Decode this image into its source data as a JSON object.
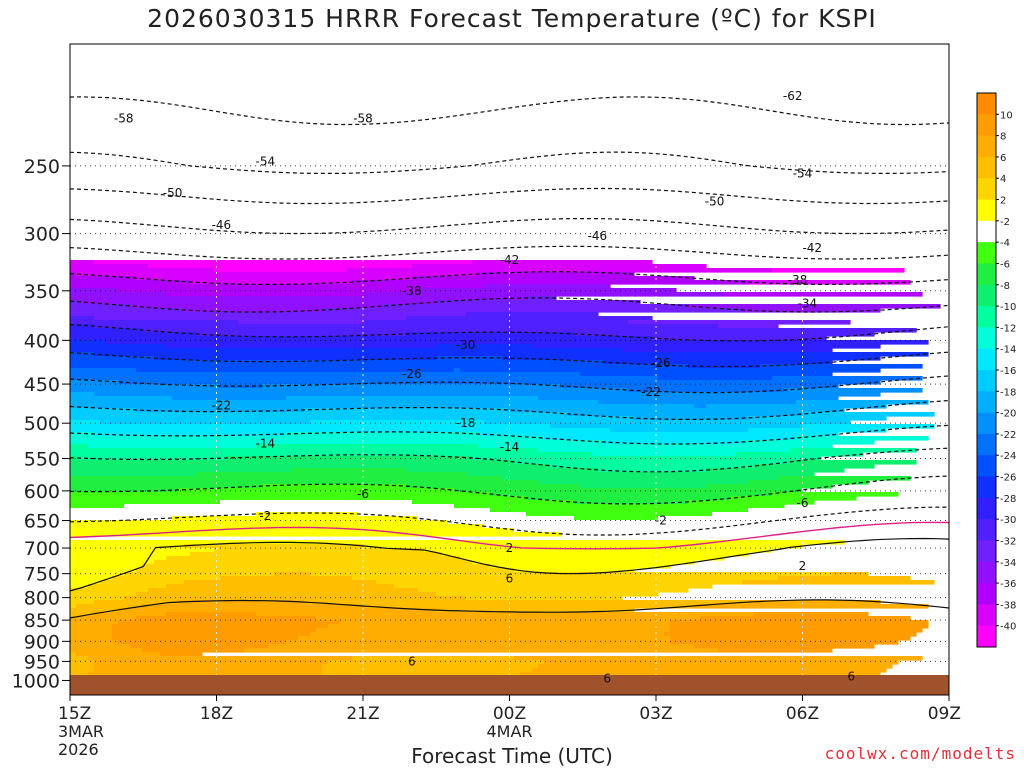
{
  "chart_data": {
    "type": "heatmap",
    "title": "2026030315 HRRR Forecast Temperature (ºC) for KSPI",
    "xlabel": "Forecast Time (UTC)",
    "ylabel": "",
    "credit": "coolwx.com/modelts",
    "x_ticks": [
      {
        "hour": 0,
        "label": "15Z",
        "sub1": "3MAR",
        "sub2": "2026"
      },
      {
        "hour": 3,
        "label": "18Z",
        "sub1": "",
        "sub2": ""
      },
      {
        "hour": 6,
        "label": "21Z",
        "sub1": "",
        "sub2": ""
      },
      {
        "hour": 9,
        "label": "00Z",
        "sub1": "4MAR",
        "sub2": ""
      },
      {
        "hour": 12,
        "label": "03Z",
        "sub1": "",
        "sub2": ""
      },
      {
        "hour": 15,
        "label": "06Z",
        "sub1": "",
        "sub2": ""
      },
      {
        "hour": 18,
        "label": "09Z",
        "sub1": "",
        "sub2": ""
      }
    ],
    "x_range_hours": [
      0,
      18
    ],
    "y_axis": "pressure (hPa), log scale, inverted",
    "y_range": [
      1040,
      180
    ],
    "y_ticks": [
      250,
      300,
      350,
      400,
      450,
      500,
      550,
      600,
      650,
      700,
      750,
      800,
      850,
      900,
      950,
      1000
    ],
    "colorbar_labels": [
      "10",
      "8",
      "6",
      "4",
      "2",
      "-2",
      "-4",
      "-6",
      "-8",
      "-10",
      "-12",
      "-14",
      "-16",
      "-18",
      "-20",
      "-22",
      "-24",
      "-26",
      "-28",
      "-30",
      "-32",
      "-34",
      "-36",
      "-38",
      "-40"
    ],
    "colorbar_colors": [
      "#ff8c00",
      "#ff9d00",
      "#ffad00",
      "#ffbe00",
      "#ffd500",
      "#ffff00",
      "#ffffff",
      "#40ff10",
      "#20ee40",
      "#10ee70",
      "#00ffa0",
      "#00ffd8",
      "#00e8ff",
      "#00ccff",
      "#00b0ff",
      "#0090ff",
      "#0070ff",
      "#0050ff",
      "#1030ff",
      "#3020ff",
      "#5020ff",
      "#7020ff",
      "#9010ff",
      "#b000ff",
      "#d800ff",
      "#ff00ff"
    ],
    "isotherm_profile_base": [
      {
        "p": 1000,
        "t": 6.5
      },
      {
        "p": 950,
        "t": 6.2
      },
      {
        "p": 900,
        "t": 7.2
      },
      {
        "p": 850,
        "t": 7.5
      },
      {
        "p": 800,
        "t": 4.5
      },
      {
        "p": 750,
        "t": 3
      },
      {
        "p": 700,
        "t": 1.5
      },
      {
        "p": 650,
        "t": -2
      },
      {
        "p": 600,
        "t": -6
      },
      {
        "p": 550,
        "t": -10
      },
      {
        "p": 500,
        "t": -16
      },
      {
        "p": 450,
        "t": -22
      },
      {
        "p": 400,
        "t": -29
      },
      {
        "p": 350,
        "t": -36
      },
      {
        "p": 300,
        "t": -45
      },
      {
        "p": 250,
        "t": -54
      },
      {
        "p": 200,
        "t": -60
      }
    ],
    "contour_labels": [
      {
        "value": "-58",
        "hour": 1.1,
        "p": 220
      },
      {
        "value": "-58",
        "hour": 6.0,
        "p": 220
      },
      {
        "value": "-62",
        "hour": 14.8,
        "p": 207
      },
      {
        "value": "-54",
        "hour": 4.0,
        "p": 247
      },
      {
        "value": "-54",
        "hour": 15.0,
        "p": 255
      },
      {
        "value": "-50",
        "hour": 2.1,
        "p": 269
      },
      {
        "value": "-50",
        "hour": 13.2,
        "p": 275
      },
      {
        "value": "-46",
        "hour": 3.1,
        "p": 293
      },
      {
        "value": "-46",
        "hour": 10.8,
        "p": 302
      },
      {
        "value": "-42",
        "hour": 9.0,
        "p": 322
      },
      {
        "value": "-42",
        "hour": 15.2,
        "p": 312
      },
      {
        "value": "-38",
        "hour": 7.0,
        "p": 350
      },
      {
        "value": "-38",
        "hour": 14.9,
        "p": 340
      },
      {
        "value": "-34",
        "hour": 15.1,
        "p": 362
      },
      {
        "value": "-30",
        "hour": 8.1,
        "p": 405
      },
      {
        "value": "-26",
        "hour": 7.0,
        "p": 438
      },
      {
        "value": "-26",
        "hour": 12.1,
        "p": 425
      },
      {
        "value": "-22",
        "hour": 3.1,
        "p": 477
      },
      {
        "value": "-22",
        "hour": 11.9,
        "p": 460
      },
      {
        "value": "-18",
        "hour": 8.1,
        "p": 500
      },
      {
        "value": "-14",
        "hour": 4.0,
        "p": 528
      },
      {
        "value": "-14",
        "hour": 9.0,
        "p": 533
      },
      {
        "value": "-6",
        "hour": 6.0,
        "p": 605
      },
      {
        "value": "-6",
        "hour": 15.0,
        "p": 620
      },
      {
        "value": "-2",
        "hour": 4.0,
        "p": 642
      },
      {
        "value": "-2",
        "hour": 12.1,
        "p": 650
      },
      {
        "value": "2",
        "hour": 9.0,
        "p": 700
      },
      {
        "value": "2",
        "hour": 15.0,
        "p": 735
      },
      {
        "value": "6",
        "hour": 9.0,
        "p": 760
      },
      {
        "value": "6",
        "hour": 7.0,
        "p": 950
      },
      {
        "value": "6",
        "hour": 11.0,
        "p": 995
      },
      {
        "value": "6",
        "hour": 16.0,
        "p": 990
      }
    ]
  }
}
